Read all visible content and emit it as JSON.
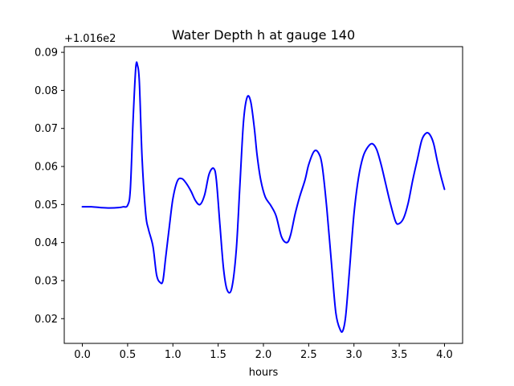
{
  "chart_data": {
    "type": "line",
    "title": "Water Depth h at gauge 140",
    "xlabel": "hours",
    "ylabel": "",
    "y_offset_label": "+1.016e2",
    "xlim": [
      -0.2,
      4.2
    ],
    "ylim": [
      0.0135,
      0.0915
    ],
    "x_ticks": [
      0.0,
      0.5,
      1.0,
      1.5,
      2.0,
      2.5,
      3.0,
      3.5,
      4.0
    ],
    "x_tick_labels": [
      "0.0",
      "0.5",
      "1.0",
      "1.5",
      "2.0",
      "2.5",
      "3.0",
      "3.5",
      "4.0"
    ],
    "y_ticks": [
      0.02,
      0.03,
      0.04,
      0.05,
      0.06,
      0.07,
      0.08,
      0.09
    ],
    "y_tick_labels": [
      "0.02",
      "0.03",
      "0.04",
      "0.05",
      "0.06",
      "0.07",
      "0.08",
      "0.09"
    ],
    "grid": false,
    "series": [
      {
        "color": "#0000ff",
        "x": [
          0.0,
          0.1,
          0.2,
          0.3,
          0.4,
          0.45,
          0.5,
          0.53,
          0.56,
          0.59,
          0.61,
          0.63,
          0.66,
          0.7,
          0.73,
          0.78,
          0.82,
          0.86,
          0.89,
          0.92,
          0.96,
          1.0,
          1.05,
          1.1,
          1.15,
          1.2,
          1.25,
          1.3,
          1.35,
          1.4,
          1.45,
          1.48,
          1.52,
          1.56,
          1.6,
          1.65,
          1.7,
          1.74,
          1.78,
          1.82,
          1.86,
          1.9,
          1.93,
          1.97,
          2.02,
          2.08,
          2.14,
          2.2,
          2.26,
          2.3,
          2.35,
          2.4,
          2.46,
          2.5,
          2.56,
          2.61,
          2.65,
          2.7,
          2.75,
          2.8,
          2.85,
          2.88,
          2.91,
          2.95,
          3.0,
          3.05,
          3.1,
          3.15,
          3.2,
          3.25,
          3.3,
          3.35,
          3.4,
          3.46,
          3.5,
          3.55,
          3.6,
          3.65,
          3.7,
          3.75,
          3.8,
          3.84,
          3.88,
          3.92,
          3.96,
          4.0
        ],
        "y": [
          0.0494,
          0.0494,
          0.0492,
          0.0491,
          0.0492,
          0.0494,
          0.0498,
          0.054,
          0.072,
          0.086,
          0.0865,
          0.082,
          0.062,
          0.0475,
          0.0435,
          0.039,
          0.0315,
          0.0295,
          0.03,
          0.036,
          0.044,
          0.0515,
          0.0562,
          0.0568,
          0.0555,
          0.0535,
          0.051,
          0.05,
          0.0525,
          0.058,
          0.0595,
          0.0565,
          0.0445,
          0.033,
          0.0275,
          0.028,
          0.038,
          0.055,
          0.0718,
          0.0782,
          0.077,
          0.07,
          0.063,
          0.0565,
          0.052,
          0.0498,
          0.047,
          0.0415,
          0.04,
          0.042,
          0.0475,
          0.052,
          0.0565,
          0.0605,
          0.064,
          0.0635,
          0.06,
          0.049,
          0.035,
          0.0215,
          0.017,
          0.017,
          0.021,
          0.0325,
          0.0475,
          0.057,
          0.0625,
          0.065,
          0.066,
          0.0645,
          0.0605,
          0.0555,
          0.0505,
          0.0455,
          0.045,
          0.0465,
          0.0505,
          0.0565,
          0.0618,
          0.067,
          0.0688,
          0.0683,
          0.066,
          0.0615,
          0.0575,
          0.054
        ]
      }
    ]
  }
}
